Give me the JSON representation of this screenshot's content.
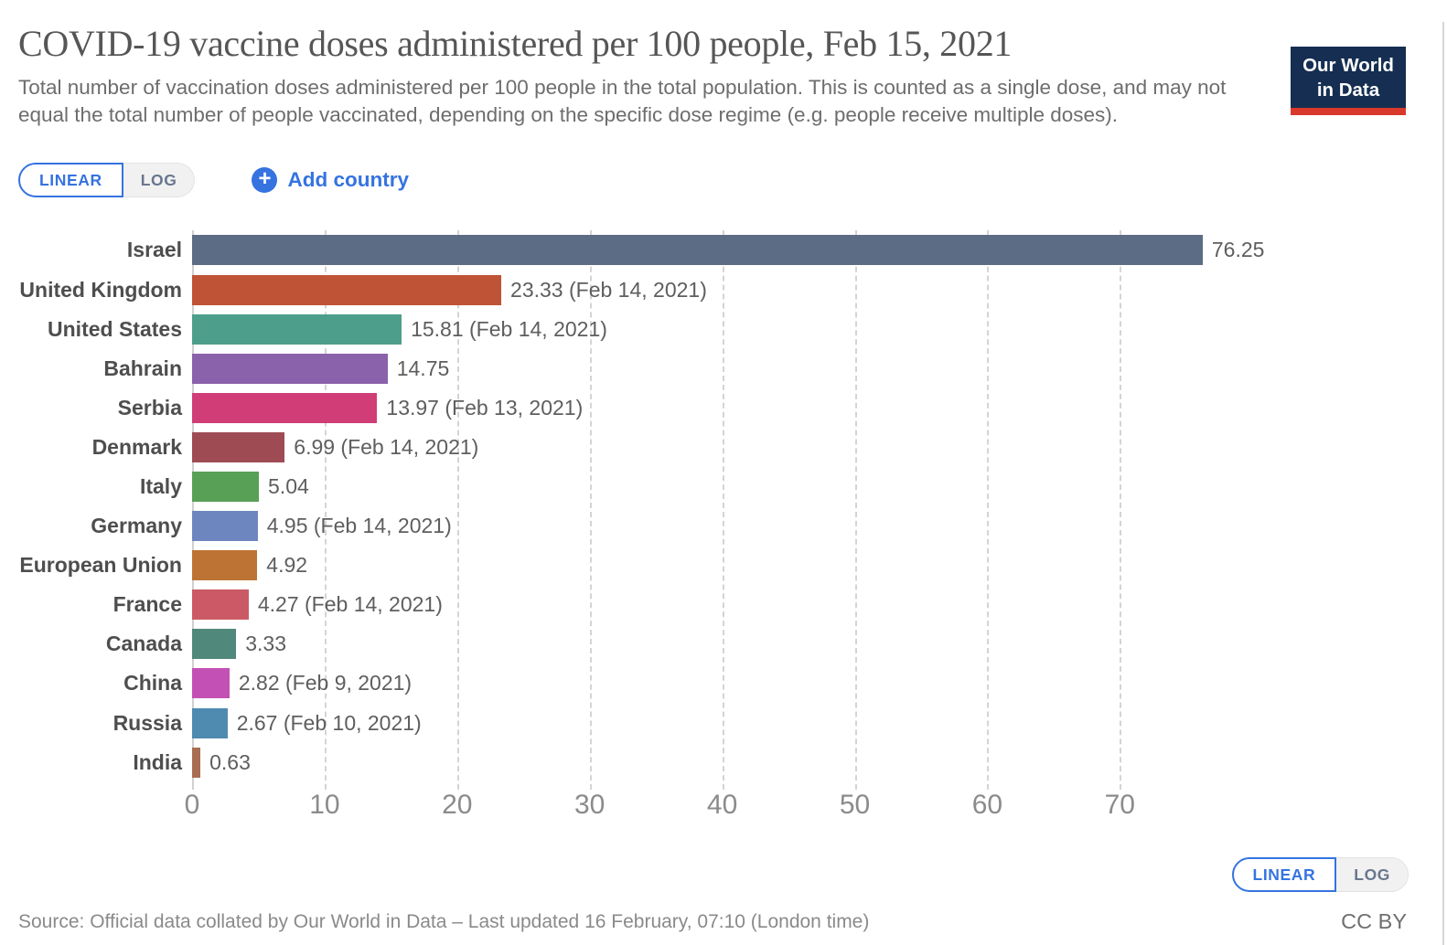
{
  "header": {
    "title": "COVID-19 vaccine doses administered per 100 people, Feb 15, 2021",
    "subtitle": "Total number of vaccination doses administered per 100 people in the total population. This is counted as a single dose, and may not equal the total number of people vaccinated, depending on the specific dose regime (e.g. people receive multiple doses).",
    "logo": {
      "line1": "Our World",
      "line2": "in Data"
    }
  },
  "controls": {
    "linear_label": "LINEAR",
    "log_label": "LOG",
    "add_country_label": "Add country",
    "plus_icon": "+"
  },
  "chart_data": {
    "type": "bar",
    "orientation": "horizontal",
    "title": "COVID-19 vaccine doses administered per 100 people, Feb 15, 2021",
    "xlabel": "",
    "ylabel": "",
    "grid": "vertical-dashed",
    "legend": "none",
    "xticks": [
      0,
      10,
      20,
      30,
      40,
      50,
      60,
      70
    ],
    "xlim": [
      0,
      82
    ],
    "categories": [
      "Israel",
      "United Kingdom",
      "United States",
      "Bahrain",
      "Serbia",
      "Denmark",
      "Italy",
      "Germany",
      "European Union",
      "France",
      "Canada",
      "China",
      "Russia",
      "India"
    ],
    "values": [
      76.25,
      23.33,
      15.81,
      14.75,
      13.97,
      6.99,
      5.04,
      4.95,
      4.92,
      4.27,
      3.33,
      2.82,
      2.67,
      0.63
    ],
    "value_labels": [
      "76.25",
      "23.33 (Feb 14, 2021)",
      "15.81 (Feb 14, 2021)",
      "14.75",
      "13.97 (Feb 13, 2021)",
      "6.99 (Feb 14, 2021)",
      "5.04",
      "4.95 (Feb 14, 2021)",
      "4.92",
      "4.27 (Feb 14, 2021)",
      "3.33",
      "2.82 (Feb 9, 2021)",
      "2.67 (Feb 10, 2021)",
      "0.63"
    ],
    "bar_colors": [
      "#5b6c84",
      "#bf5336",
      "#4d9e8b",
      "#8a62ab",
      "#d03d77",
      "#9e4b54",
      "#57a055",
      "#6d86bf",
      "#bd7334",
      "#cb5a66",
      "#51887c",
      "#c350b4",
      "#4f8ab0",
      "#a96d51"
    ]
  },
  "footer": {
    "source": "Source: Official data collated by Our World in Data – Last updated 16 February, 07:10 (London time)",
    "license": "CC BY"
  },
  "colors": {
    "accent_blue": "#3573e0",
    "logo_navy": "#152e52",
    "logo_red": "#d8392c",
    "gridline": "#d4d4d4"
  }
}
